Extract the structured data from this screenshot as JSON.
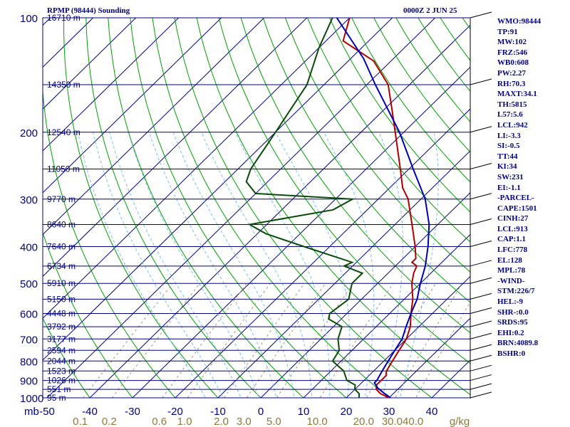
{
  "header": {
    "title": "RPMP (98444) Sounding",
    "time": "0000Z  2 JUN 25"
  },
  "indices": [
    "WMO:98444",
    "TP:91",
    "MW:102",
    "FRZ:546",
    "WB0:608",
    "PW:2.27",
    "RH:70.3",
    "MAXT:34.1",
    "TH:5815",
    "L57:5.6",
    "LCL:942",
    "LI:-3.3",
    "SI:-0.5",
    "TT:44",
    "KI:34",
    "SW:231",
    "EI:-1.1",
    "-PARCEL-",
    "CAPE:1501",
    "CINH:27",
    "LCL:913",
    "CAP:1.1",
    "LFC:778",
    "EL:128",
    "MPL:78",
    "-WIND-",
    "STM:226/7",
    "HEL:-9",
    "SHR-:0.0",
    "SRDS:95",
    "EHI:0.2",
    "BRN:4089.8",
    "BSHR:0"
  ],
  "colors": {
    "isobar": "#000080",
    "isotherm": "#000080",
    "dry_adiabat": "#00a000",
    "moist_adiabat": "#7fbfef",
    "mixing_ratio": "#a09870",
    "temperature": "#b00000",
    "dewpoint": "#0a4a0a",
    "parcel": "#0000b0",
    "label": "#000080",
    "mr_label": "#8a7a3a",
    "background": "#ffffff"
  },
  "chart_data": {
    "type": "line",
    "title": "",
    "xlabel": "",
    "ylabel": "mb",
    "ylim": [
      1000,
      100
    ],
    "xlim": [
      -50,
      50
    ],
    "y_scale": "log",
    "pressure_levels": [
      100,
      200,
      300,
      400,
      500,
      600,
      700,
      800,
      900,
      1000
    ],
    "pressure_tick_labels": [
      "100",
      "200",
      "300",
      "400",
      "500",
      "600",
      "700",
      "800",
      "900",
      "1000"
    ],
    "y_unit_label": "mb",
    "temperature_ticks": [
      -50,
      -40,
      -30,
      -20,
      -10,
      0,
      10,
      20,
      30,
      40
    ],
    "temperature_tick_labels": [
      "-50",
      "-40",
      "-30",
      "-20",
      "-10",
      "0",
      "10",
      "20",
      "30",
      "40"
    ],
    "height_labels": [
      {
        "p": 100,
        "text": "16710 m"
      },
      {
        "p": 150,
        "text": "14350 m"
      },
      {
        "p": 200,
        "text": "12540 m"
      },
      {
        "p": 250,
        "text": "11050 m"
      },
      {
        "p": 300,
        "text": "9770 m"
      },
      {
        "p": 350,
        "text": "8640 m"
      },
      {
        "p": 400,
        "text": "7640 m"
      },
      {
        "p": 450,
        "text": "6734 m"
      },
      {
        "p": 500,
        "text": "5910 m"
      },
      {
        "p": 550,
        "text": "5150 m"
      },
      {
        "p": 600,
        "text": "4448 m"
      },
      {
        "p": 650,
        "text": "3792 m"
      },
      {
        "p": 700,
        "text": "3177 m"
      },
      {
        "p": 750,
        "text": "2594 m"
      },
      {
        "p": 800,
        "text": "2044 m"
      },
      {
        "p": 850,
        "text": "1523 m"
      },
      {
        "p": 900,
        "text": "1026 m"
      },
      {
        "p": 950,
        "text": "551 m"
      },
      {
        "p": 1000,
        "text": "95 m"
      }
    ],
    "mixing_ratio_values": [
      0.1,
      0.2,
      0.6,
      1.0,
      2.0,
      3.0,
      5.0,
      10.0,
      20.0,
      30.0,
      40.0
    ],
    "mixing_ratio_labels": [
      "0.1",
      "0.2",
      "0.6",
      "1.0",
      "2.0",
      "3.0",
      "5.0",
      "10.0",
      "20.0",
      "30.0",
      "40.0"
    ],
    "mixing_ratio_unit": "g/kg",
    "series": [
      {
        "key": "temperature",
        "points": [
          [
            1007,
            31
          ],
          [
            1000,
            30
          ],
          [
            975,
            27
          ],
          [
            950,
            25
          ],
          [
            925,
            24
          ],
          [
            900,
            24
          ],
          [
            875,
            24
          ],
          [
            850,
            23
          ],
          [
            800,
            22
          ],
          [
            750,
            21
          ],
          [
            700,
            20
          ],
          [
            650,
            18
          ],
          [
            600,
            15
          ],
          [
            550,
            12
          ],
          [
            500,
            8
          ],
          [
            470,
            6
          ],
          [
            450,
            5
          ],
          [
            440,
            3
          ],
          [
            430,
            3
          ],
          [
            400,
            0
          ],
          [
            350,
            -6
          ],
          [
            300,
            -13
          ],
          [
            280,
            -17
          ],
          [
            250,
            -22
          ],
          [
            200,
            -32
          ],
          [
            175,
            -38
          ],
          [
            150,
            -45
          ],
          [
            130,
            -54
          ],
          [
            115,
            -66
          ],
          [
            100,
            -70
          ]
        ]
      },
      {
        "key": "dewpoint",
        "points": [
          [
            1007,
            24
          ],
          [
            1000,
            23
          ],
          [
            975,
            22
          ],
          [
            950,
            20
          ],
          [
            925,
            19
          ],
          [
            900,
            16
          ],
          [
            850,
            13
          ],
          [
            800,
            8
          ],
          [
            750,
            7
          ],
          [
            700,
            4
          ],
          [
            650,
            2
          ],
          [
            620,
            -3
          ],
          [
            600,
            -4
          ],
          [
            550,
            -3
          ],
          [
            500,
            -6
          ],
          [
            470,
            -6
          ],
          [
            450,
            -12
          ],
          [
            440,
            -11
          ],
          [
            400,
            -26
          ],
          [
            370,
            -38
          ],
          [
            350,
            -44
          ],
          [
            320,
            -28
          ],
          [
            300,
            -26
          ],
          [
            290,
            -50
          ],
          [
            270,
            -55
          ],
          [
            250,
            -57
          ],
          [
            200,
            -60
          ],
          [
            150,
            -64
          ],
          [
            120,
            -70
          ],
          [
            100,
            -74
          ]
        ]
      },
      {
        "key": "parcel",
        "points": [
          [
            1007,
            31
          ],
          [
            975,
            28
          ],
          [
            942,
            25
          ],
          [
            913,
            23
          ],
          [
            900,
            23
          ],
          [
            850,
            22
          ],
          [
            800,
            21
          ],
          [
            750,
            20
          ],
          [
            700,
            19
          ],
          [
            650,
            17
          ],
          [
            600,
            15
          ],
          [
            550,
            13
          ],
          [
            500,
            10
          ],
          [
            450,
            7
          ],
          [
            400,
            3
          ],
          [
            350,
            -2
          ],
          [
            300,
            -9
          ],
          [
            250,
            -19
          ],
          [
            200,
            -31
          ],
          [
            150,
            -48
          ],
          [
            128,
            -57
          ],
          [
            100,
            -73
          ]
        ]
      }
    ]
  }
}
